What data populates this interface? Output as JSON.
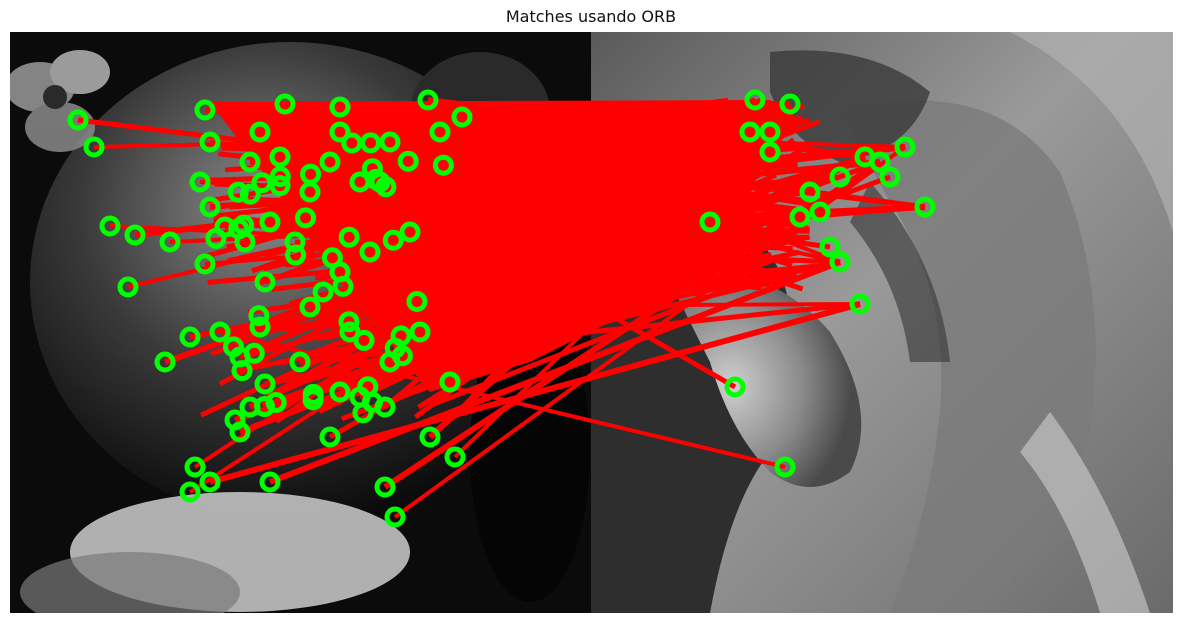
{
  "figure": {
    "title": "Matches usando ORB"
  },
  "colors": {
    "match_line": "#ff0000",
    "keypoint": "#00ff00",
    "background": "#ffffff"
  },
  "images": {
    "left": "grayscale face with glitter makeup and flower",
    "right": "grayscale face with glitter makeup, side profile"
  }
}
